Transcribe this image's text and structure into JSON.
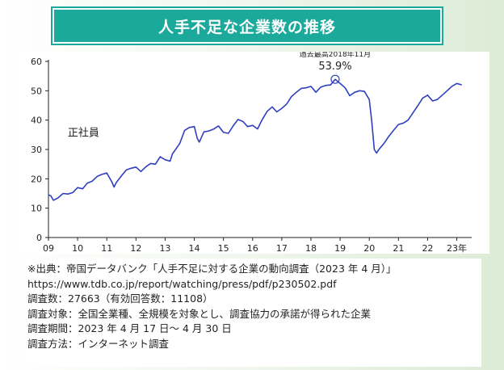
{
  "title": "人手不足な企業数の推移",
  "chart_data": {
    "type": "line",
    "title": "人手不足な企業数の推移",
    "xlabel": "",
    "ylabel": "",
    "x_tick_labels": [
      "09",
      "10",
      "11",
      "12",
      "13",
      "14",
      "15",
      "16",
      "17",
      "18",
      "19",
      "20",
      "21",
      "22",
      "23年"
    ],
    "y_ticks": [
      0,
      10,
      20,
      30,
      40,
      50,
      60
    ],
    "ylim": [
      0,
      60
    ],
    "xlim": [
      2009.0,
      2023.4
    ],
    "grid": false,
    "annotation": {
      "caption": "過去最高2018年11月",
      "value_label": "53.9%",
      "x": 2018.83,
      "y": 53.9
    },
    "series": [
      {
        "name": "正社員",
        "color": "#2f3fbf",
        "x": [
          2009.0,
          2009.08,
          2009.17,
          2009.33,
          2009.5,
          2009.67,
          2009.83,
          2010.0,
          2010.17,
          2010.33,
          2010.5,
          2010.67,
          2010.83,
          2011.0,
          2011.17,
          2011.25,
          2011.33,
          2011.5,
          2011.67,
          2011.83,
          2012.0,
          2012.17,
          2012.33,
          2012.5,
          2012.67,
          2012.83,
          2013.0,
          2013.17,
          2013.25,
          2013.5,
          2013.67,
          2013.83,
          2014.0,
          2014.1,
          2014.17,
          2014.33,
          2014.5,
          2014.67,
          2014.83,
          2015.0,
          2015.17,
          2015.33,
          2015.5,
          2015.67,
          2015.83,
          2016.0,
          2016.17,
          2016.33,
          2016.5,
          2016.67,
          2016.83,
          2017.0,
          2017.17,
          2017.33,
          2017.5,
          2017.67,
          2017.83,
          2018.0,
          2018.17,
          2018.33,
          2018.5,
          2018.67,
          2018.83,
          2019.0,
          2019.17,
          2019.33,
          2019.5,
          2019.67,
          2019.83,
          2020.0,
          2020.08,
          2020.17,
          2020.25,
          2020.33,
          2020.5,
          2020.67,
          2020.83,
          2021.0,
          2021.17,
          2021.33,
          2021.5,
          2021.67,
          2021.83,
          2022.0,
          2022.17,
          2022.33,
          2022.5,
          2022.67,
          2022.83,
          2023.0,
          2023.17
        ],
        "y": [
          14.5,
          14.2,
          12.7,
          13.5,
          15.0,
          14.8,
          15.3,
          17.0,
          16.6,
          18.5,
          19.2,
          20.8,
          21.5,
          22.0,
          19.0,
          17.2,
          18.8,
          21.0,
          23.0,
          23.6,
          24.0,
          22.5,
          24.0,
          25.2,
          25.0,
          27.5,
          26.5,
          26.0,
          28.5,
          32.0,
          36.5,
          37.5,
          37.8,
          33.8,
          32.5,
          36.0,
          36.3,
          37.0,
          38.0,
          35.8,
          35.5,
          38.0,
          40.2,
          39.5,
          37.8,
          38.2,
          37.0,
          40.2,
          43.0,
          44.5,
          42.8,
          44.0,
          45.5,
          48.0,
          49.5,
          50.8,
          51.0,
          51.5,
          49.5,
          51.2,
          51.8,
          52.0,
          53.9,
          52.5,
          51.0,
          48.3,
          49.5,
          50.0,
          49.8,
          47.0,
          40.0,
          30.0,
          28.8,
          30.0,
          32.0,
          34.5,
          36.5,
          38.5,
          39.0,
          40.0,
          42.5,
          45.0,
          47.5,
          48.5,
          46.5,
          47.0,
          48.5,
          50.0,
          51.5,
          52.5,
          52.0
        ]
      }
    ]
  },
  "source": {
    "lines": [
      "※出典：帝国データバンク「人手不足に対する企業の動向調査（2023 年 4 月）」",
      "https://www.tdb.co.jp/report/watching/press/pdf/p230502.pdf",
      "調査数：27663（有効回答数：11108）",
      "調査対象：全国全業種、全規模を対象とし、調査協力の承諾が得られた企業",
      "調査期間：2023 年 4 月 17 日～ 4 月 30 日",
      "調査方法：インターネット調査"
    ]
  }
}
